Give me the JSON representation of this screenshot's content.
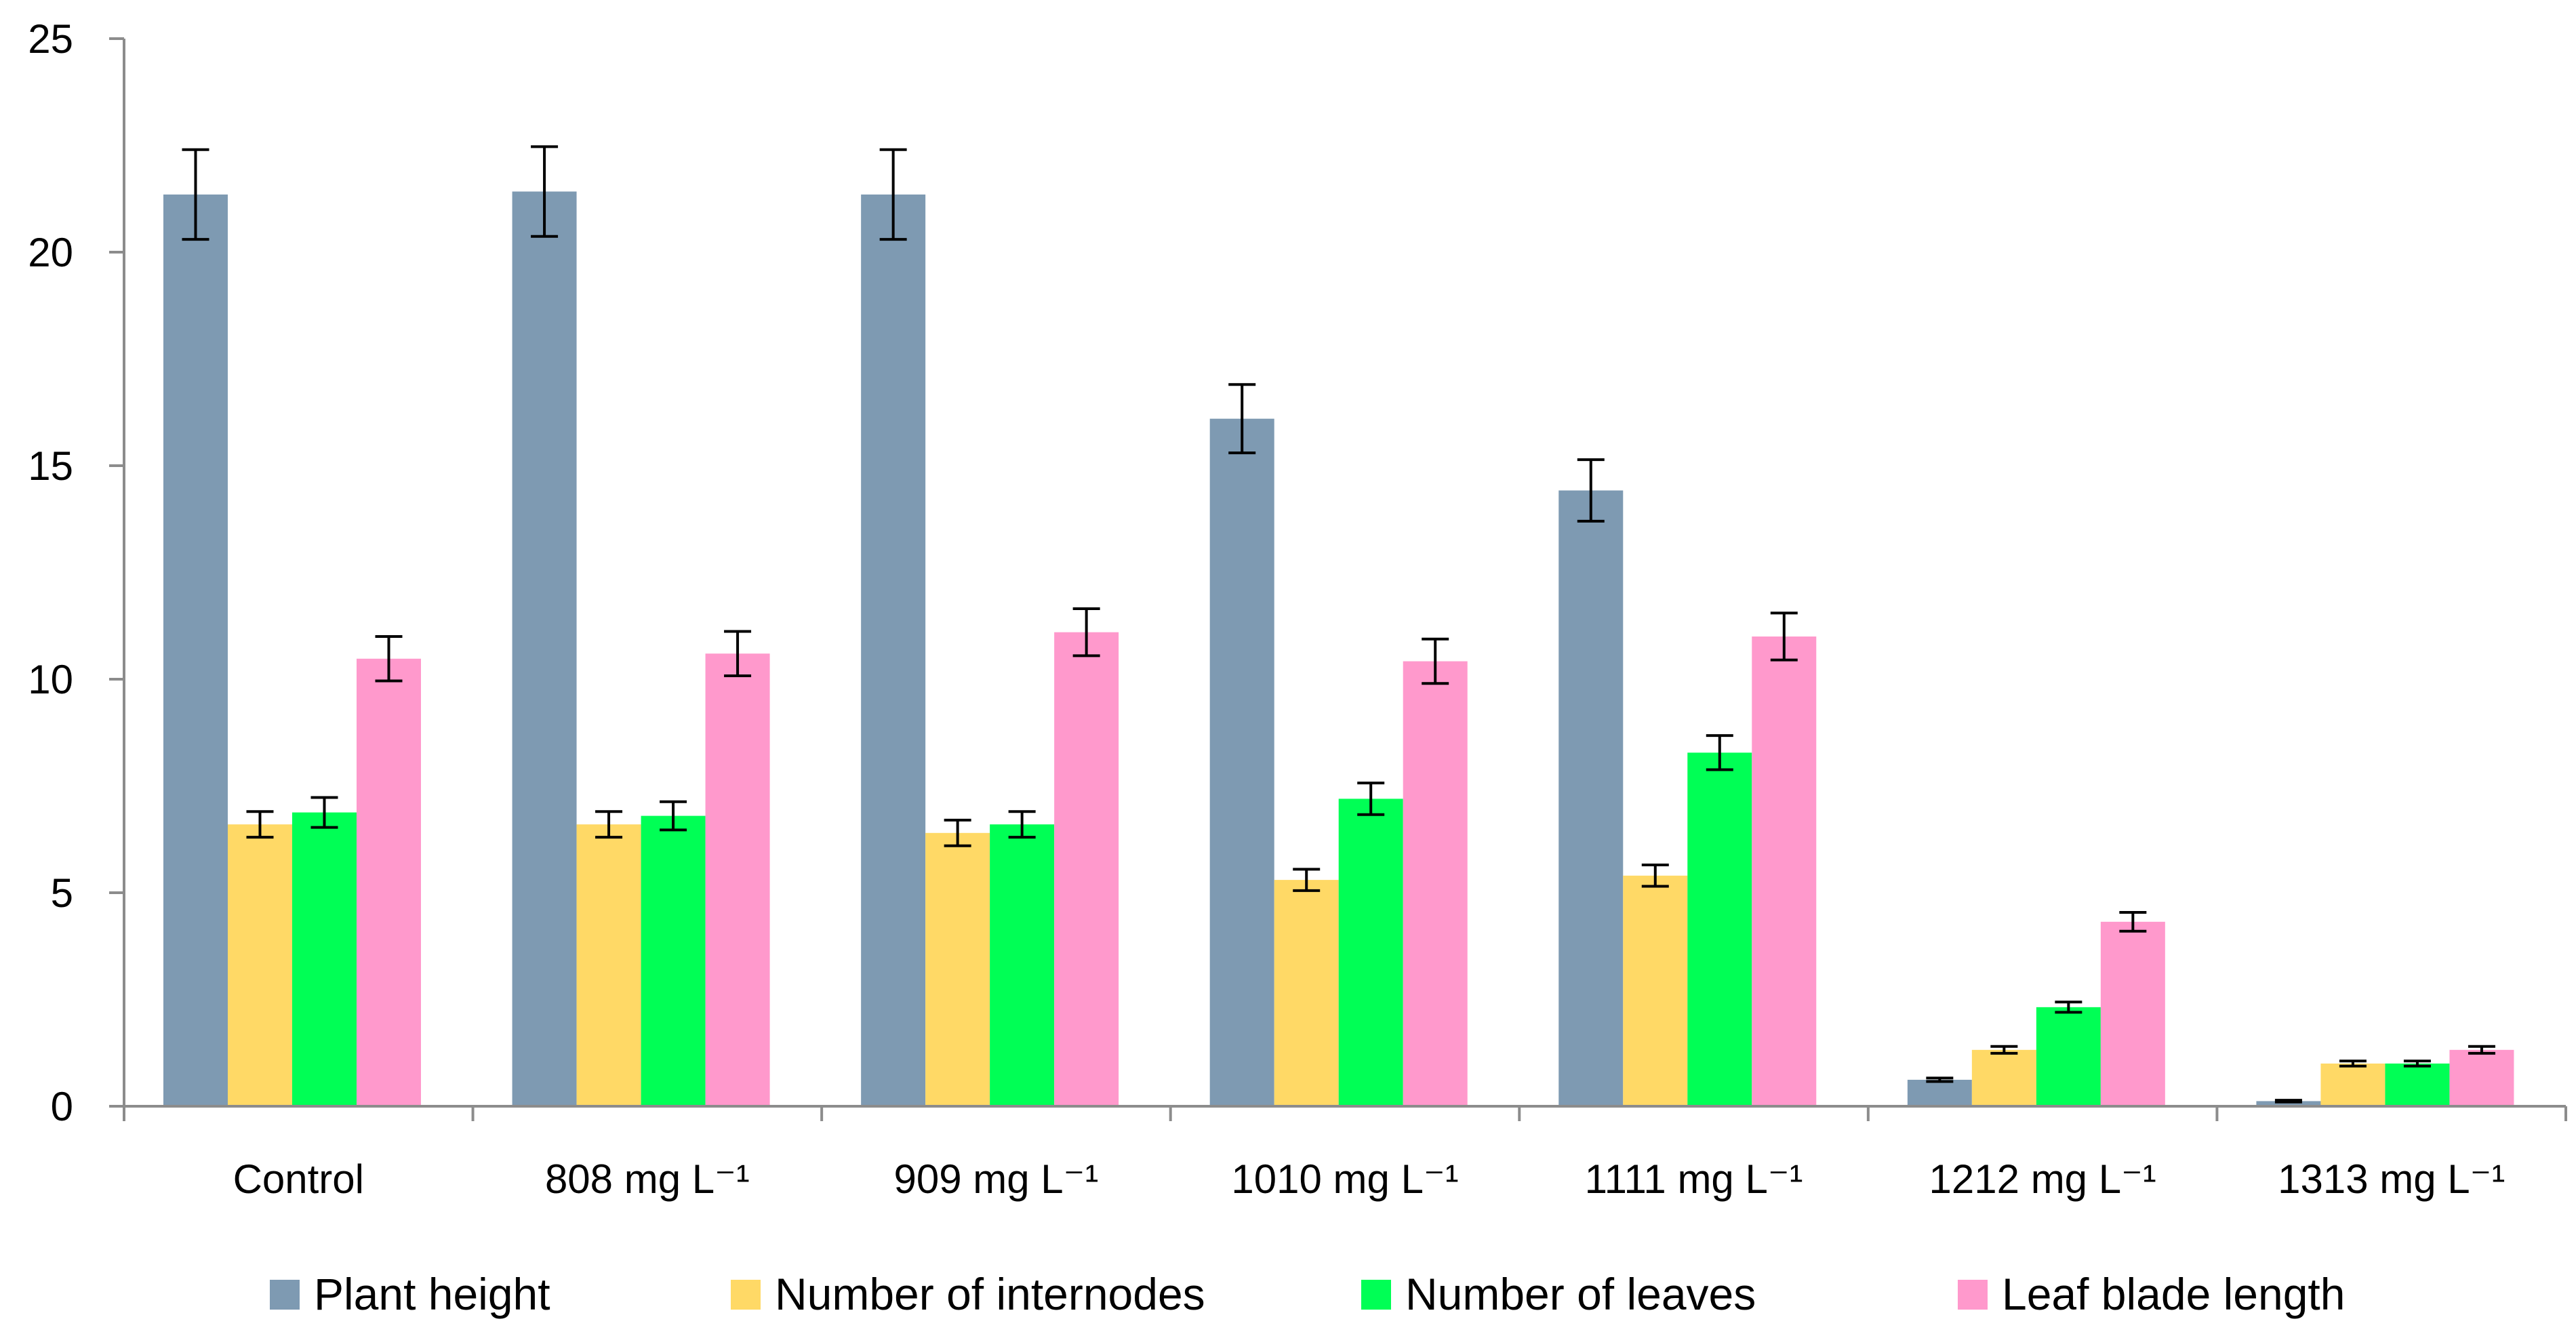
{
  "chart_data": {
    "type": "bar",
    "title": "",
    "xlabel": "",
    "ylabel": "",
    "ylim": [
      0,
      25
    ],
    "yticks": [
      0,
      5,
      10,
      15,
      20,
      25
    ],
    "grid": false,
    "legend_position": "bottom",
    "categories": [
      "Control",
      "808 mg L⁻¹",
      "909 mg L⁻¹",
      "1010 mg L⁻¹",
      "1111 mg L⁻¹",
      "1212 mg L⁻¹",
      "1313 mg L⁻¹"
    ],
    "series": [
      {
        "name": "Plant height",
        "color": "#7e9ab2",
        "values": [
          21.35,
          21.42,
          21.35,
          16.1,
          14.42,
          0.62,
          0.12
        ],
        "errors": [
          1.05,
          1.05,
          1.05,
          0.8,
          0.72,
          0.04,
          0.02
        ]
      },
      {
        "name": "Number of internodes",
        "color": "#ffd966",
        "values": [
          6.6,
          6.6,
          6.4,
          5.3,
          5.4,
          1.32,
          1.0
        ],
        "errors": [
          0.3,
          0.3,
          0.3,
          0.25,
          0.25,
          0.08,
          0.06
        ]
      },
      {
        "name": "Number of leaves",
        "color": "#00ff55",
        "values": [
          6.88,
          6.8,
          6.6,
          7.2,
          8.28,
          2.32,
          1.0
        ],
        "errors": [
          0.35,
          0.33,
          0.3,
          0.37,
          0.4,
          0.12,
          0.06
        ]
      },
      {
        "name": "Leaf blade length",
        "color": "#ff99cc",
        "values": [
          10.48,
          10.6,
          11.1,
          10.42,
          11.0,
          4.32,
          1.32
        ],
        "errors": [
          0.52,
          0.52,
          0.55,
          0.52,
          0.55,
          0.22,
          0.08
        ]
      }
    ]
  }
}
